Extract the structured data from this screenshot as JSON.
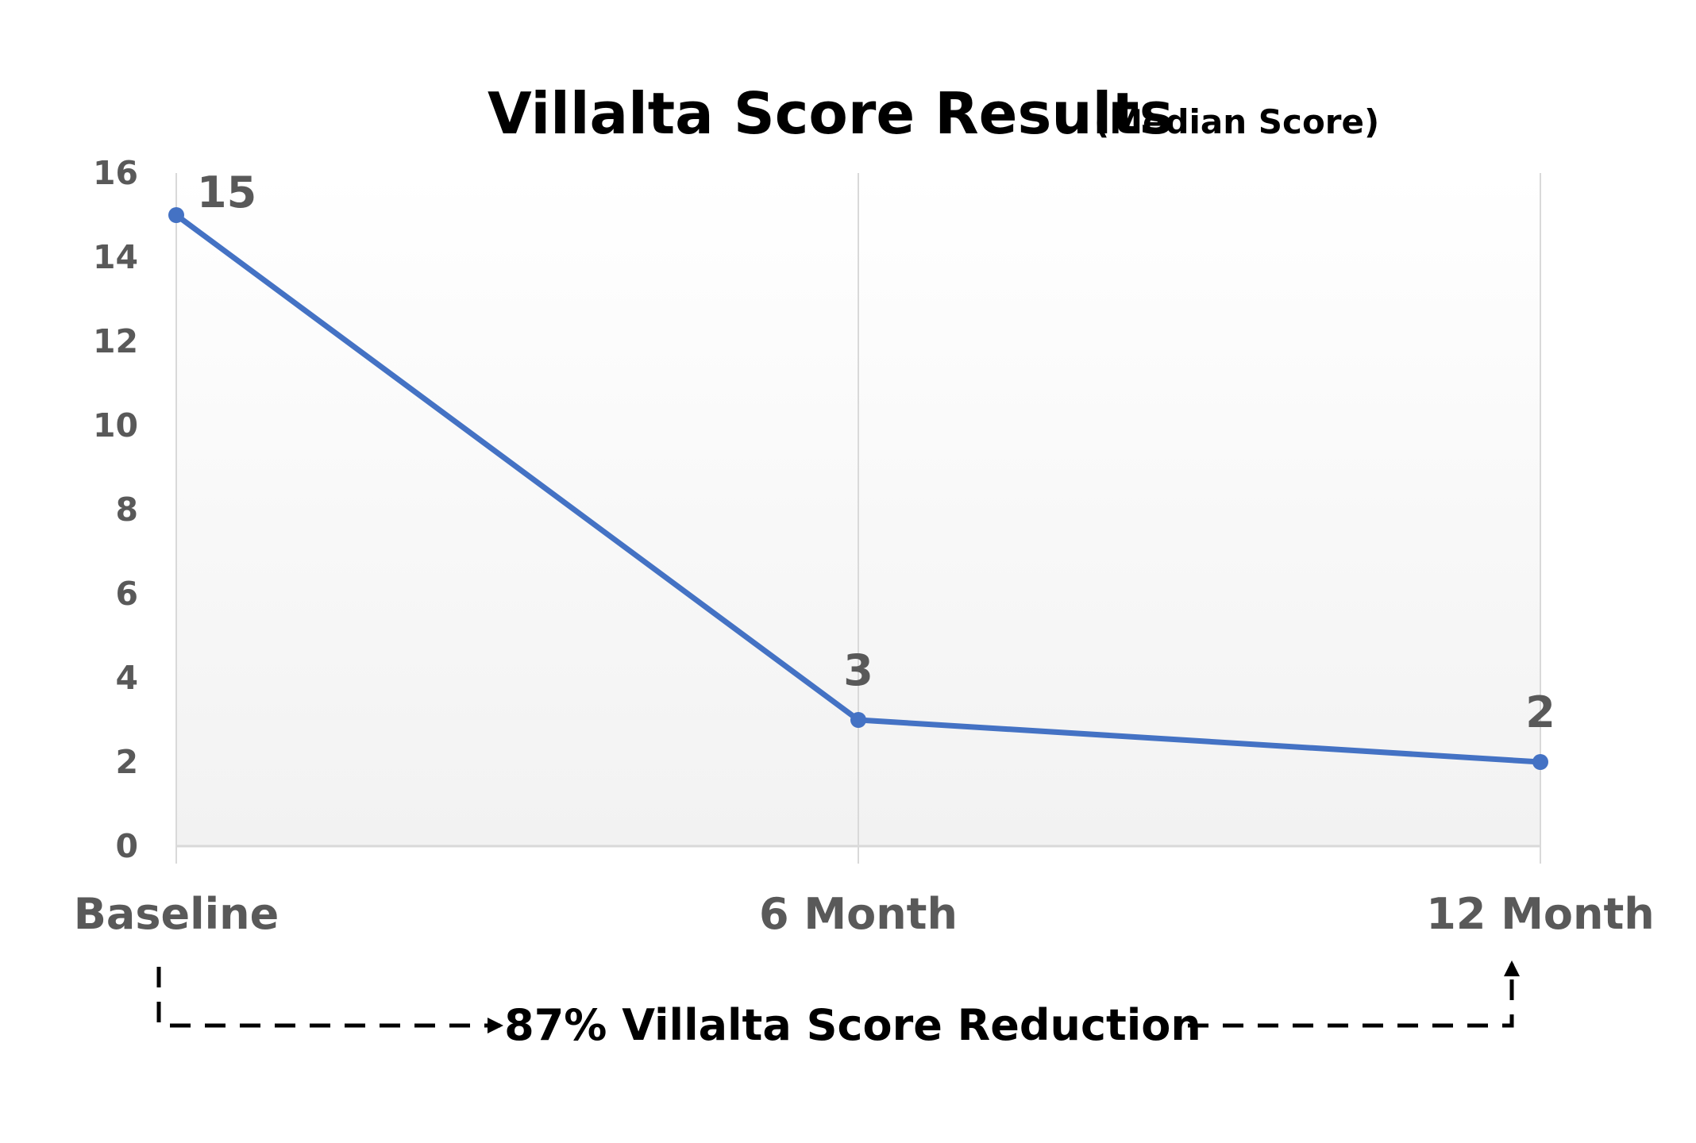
{
  "chart_data": {
    "type": "line",
    "title": "Villalta Score Results",
    "subtitle": "(Median Score)",
    "categories": [
      "Baseline",
      "6 Month",
      "12 Month"
    ],
    "series": [
      {
        "values": [
          15,
          3,
          2
        ]
      }
    ],
    "data_labels": [
      "15",
      "3",
      "2"
    ],
    "ylim": [
      0,
      16
    ],
    "y_ticks": [
      0,
      2,
      4,
      6,
      8,
      10,
      12,
      14,
      16
    ],
    "xlabel": "",
    "ylabel": "",
    "grid": false,
    "legend": "none",
    "annotation": "87% Villalta Score Reduction",
    "colors": {
      "line": "#4472C4",
      "tick_text": "#595959",
      "axis": "#D9D9D9",
      "arrow": "#000000",
      "plot_bg_top": "#FFFFFF",
      "plot_bg_bottom": "#F2F2F2"
    }
  }
}
